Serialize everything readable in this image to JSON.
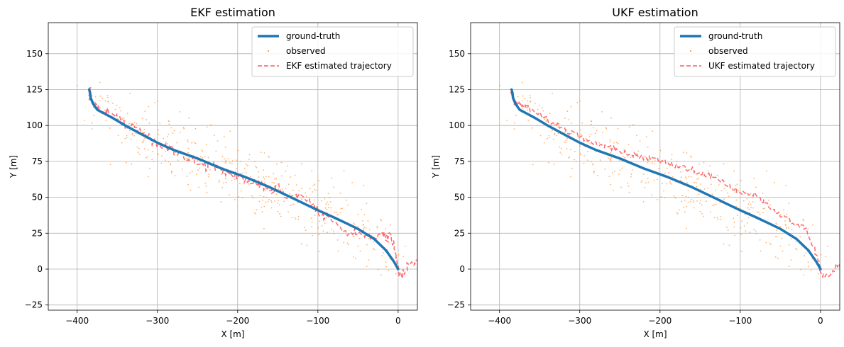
{
  "chart_data": [
    {
      "type": "line",
      "title": "EKF estimation",
      "xlabel": "X [m]",
      "ylabel": "Y [m]",
      "xlim": [
        -436,
        24
      ],
      "ylim": [
        -28.6,
        171.6
      ],
      "xticks": [
        -400,
        -300,
        -200,
        -100,
        0
      ],
      "yticks": [
        -25,
        0,
        25,
        50,
        75,
        100,
        125,
        150
      ],
      "xtick_labels": [
        "−400",
        "−300",
        "−200",
        "−100",
        "0"
      ],
      "ytick_labels": [
        "−25",
        "0",
        "25",
        "50",
        "75",
        "100",
        "125",
        "150"
      ],
      "grid": true,
      "legend_position": "top-right",
      "series": [
        {
          "name": "ground-truth",
          "style": "solid",
          "color": "#1f77b4",
          "x": [
            0,
            -5,
            -15,
            -30,
            -50,
            -65,
            -80,
            -100,
            -130,
            -160,
            -190,
            -220,
            -250,
            -280,
            -300,
            -320,
            -340,
            -355,
            -365,
            -375,
            -380,
            -383,
            -384,
            -385
          ],
          "y": [
            0,
            5,
            13,
            21,
            28,
            32,
            36,
            41,
            49,
            57,
            64,
            70,
            77,
            83,
            88,
            94,
            100,
            105,
            108,
            111,
            115,
            119,
            123,
            125
          ]
        },
        {
          "name": "observed",
          "style": "dots",
          "color": "#ff7f0e",
          "seed": 7,
          "count": 430
        },
        {
          "name": "EKF estimated trajectory",
          "style": "dashed",
          "color": "#ff5a5f",
          "offset_amp": 3.0,
          "x": [
            26,
            20,
            12,
            5,
            0,
            -2,
            -5,
            -10,
            -15,
            -20,
            -30,
            -40,
            -50,
            -60,
            -75,
            -90,
            -100,
            -110,
            -125,
            -140,
            -150,
            -160,
            -170,
            -180,
            -190,
            -200,
            -210,
            -220,
            -230,
            -240,
            -250,
            -260,
            -270,
            -280,
            -290,
            -300,
            -310,
            -320,
            -330,
            -340,
            -350,
            -355,
            -360,
            -365,
            -370,
            -375,
            -378,
            -381,
            -383,
            -384,
            -385,
            -385
          ],
          "y": [
            4,
            5,
            3,
            -4,
            -3,
            8,
            17,
            25,
            21,
            26,
            22,
            24,
            27,
            24,
            31,
            36,
            40,
            46,
            52,
            51,
            58,
            54,
            58,
            60,
            61,
            65,
            67,
            68,
            72,
            71,
            75,
            77,
            79,
            83,
            85,
            86,
            91,
            94,
            99,
            101,
            104,
            108,
            109,
            110,
            111,
            112,
            114,
            115,
            118,
            121,
            123,
            125
          ]
        }
      ]
    },
    {
      "type": "line",
      "title": "UKF estimation",
      "xlabel": "X [m]",
      "ylabel": "Y [m]",
      "xlim": [
        -436,
        24
      ],
      "ylim": [
        -28.6,
        171.6
      ],
      "xticks": [
        -400,
        -300,
        -200,
        -100,
        0
      ],
      "yticks": [
        -25,
        0,
        25,
        50,
        75,
        100,
        125,
        150
      ],
      "xtick_labels": [
        "−400",
        "−300",
        "−200",
        "−100",
        "0"
      ],
      "ytick_labels": [
        "−25",
        "0",
        "25",
        "50",
        "75",
        "100",
        "125",
        "150"
      ],
      "grid": true,
      "legend_position": "top-right",
      "series": [
        {
          "name": "ground-truth",
          "style": "solid",
          "color": "#1f77b4",
          "x": [
            0,
            -5,
            -15,
            -30,
            -50,
            -65,
            -80,
            -100,
            -130,
            -160,
            -190,
            -220,
            -250,
            -280,
            -300,
            -320,
            -340,
            -355,
            -365,
            -375,
            -380,
            -383,
            -384,
            -385
          ],
          "y": [
            0,
            5,
            13,
            21,
            28,
            32,
            36,
            41,
            49,
            57,
            64,
            70,
            77,
            83,
            88,
            94,
            100,
            105,
            108,
            111,
            115,
            119,
            123,
            125
          ]
        },
        {
          "name": "observed",
          "style": "dots",
          "color": "#ff7f0e",
          "seed": 7,
          "count": 430
        },
        {
          "name": "UKF estimated trajectory",
          "style": "dashed",
          "color": "#ff5a5f",
          "offset_amp": 2.0,
          "x": [
            26,
            20,
            12,
            5,
            0,
            -3,
            -8,
            -15,
            -20,
            -30,
            -40,
            -50,
            -60,
            -70,
            -80,
            -90,
            -100,
            -110,
            -120,
            -130,
            -140,
            -150,
            -160,
            -170,
            -180,
            -190,
            -200,
            -210,
            -220,
            -230,
            -240,
            -250,
            -260,
            -270,
            -280,
            -290,
            -300,
            -310,
            -320,
            -330,
            -340,
            -350,
            -360,
            -365,
            -370,
            -375,
            -378,
            -381,
            -383,
            -384,
            -385,
            -385
          ],
          "y": [
            4,
            2,
            -3,
            -6,
            -2,
            6,
            15,
            24,
            28,
            31,
            34,
            37,
            42,
            46,
            51,
            53,
            54,
            57,
            60,
            63,
            65,
            67,
            69,
            70,
            72,
            74,
            75,
            77,
            78,
            79,
            81,
            83,
            84,
            86,
            88,
            90,
            92,
            95,
            98,
            101,
            104,
            108,
            111,
            113,
            114,
            114,
            115,
            116,
            118,
            121,
            123,
            125
          ]
        }
      ]
    }
  ]
}
